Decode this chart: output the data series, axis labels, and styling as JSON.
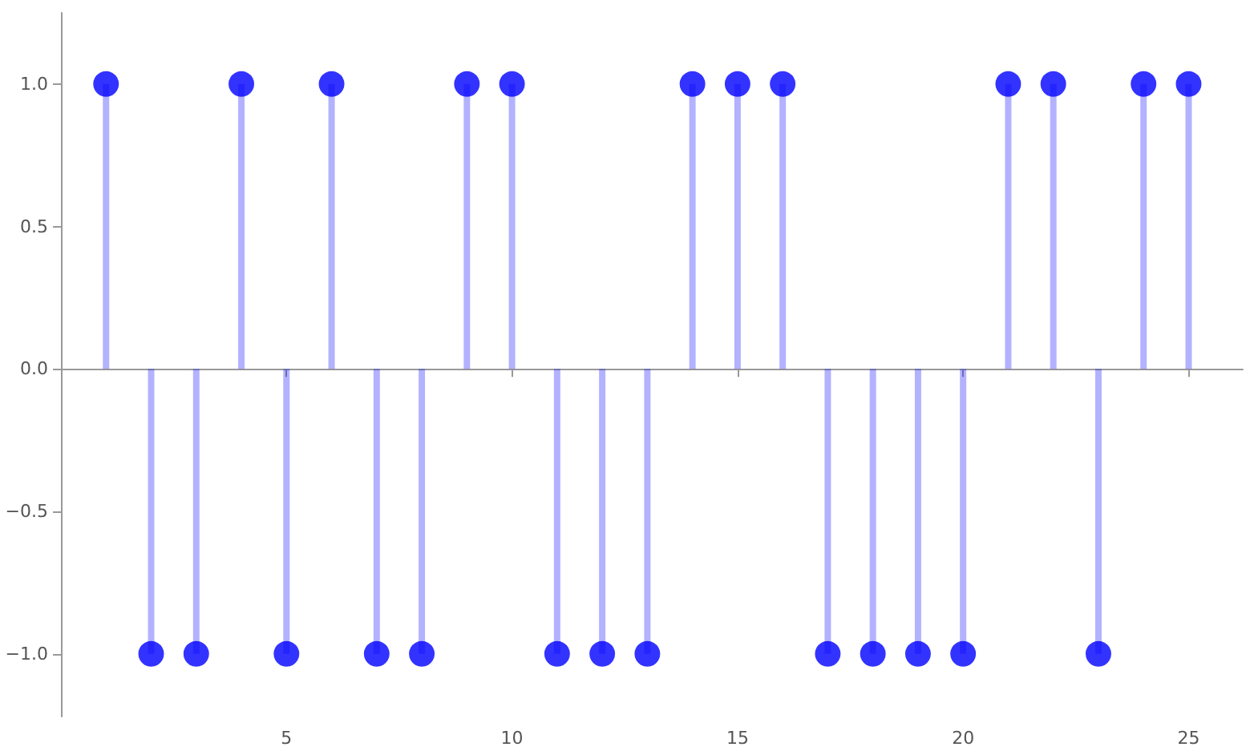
{
  "chart_data": {
    "type": "lollipop",
    "x": [
      1,
      2,
      3,
      4,
      5,
      6,
      7,
      8,
      9,
      10,
      11,
      12,
      13,
      14,
      15,
      16,
      17,
      18,
      19,
      20,
      21,
      22,
      23,
      24,
      25
    ],
    "series": [
      {
        "color": "#0000ff",
        "values": [
          1,
          -1,
          -1,
          1,
          -1,
          1,
          -1,
          -1,
          1,
          1,
          -1,
          -1,
          -1,
          1,
          1,
          1,
          -1,
          -1,
          -1,
          -1,
          1,
          1,
          -1,
          1,
          1
        ]
      }
    ],
    "xlim": [
      0,
      26.2
    ],
    "ylim": [
      -1.22,
      1.25
    ],
    "xticks": [
      5,
      10,
      15,
      20,
      25
    ],
    "yticks": [
      {
        "value": -1,
        "label": "−1.0"
      },
      {
        "value": -0.5,
        "label": "−0.5"
      },
      {
        "value": 0,
        "label": "0.0"
      },
      {
        "value": 0.5,
        "label": "0.5"
      },
      {
        "value": 1,
        "label": "1.0"
      }
    ],
    "marker": "circle"
  }
}
